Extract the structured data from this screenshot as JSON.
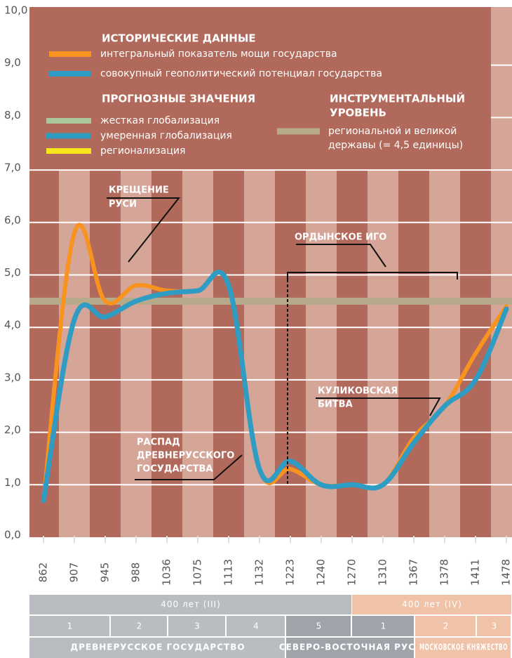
{
  "chart_data": {
    "type": "line",
    "categories": [
      "862",
      "907",
      "945",
      "988",
      "1036",
      "1075",
      "1113",
      "1132",
      "1223",
      "1240",
      "1270",
      "1310",
      "1367",
      "1378",
      "1411",
      "1478"
    ],
    "series": [
      {
        "name": "интегральный показатель мощи государства",
        "color": "#f7931e",
        "values": [
          0.7,
          5.8,
          4.5,
          4.8,
          4.7,
          4.7,
          4.8,
          1.3,
          1.3,
          1.0,
          1.0,
          1.0,
          1.9,
          2.5,
          3.5,
          4.4
        ]
      },
      {
        "name": "совокупный геополитический потенциал государства",
        "color": "#2f9cc3",
        "values": [
          0.7,
          4.15,
          4.2,
          4.5,
          4.65,
          4.7,
          4.8,
          1.3,
          1.45,
          1.0,
          1.0,
          1.0,
          1.8,
          2.5,
          3.0,
          4.35
        ]
      }
    ],
    "ylim": [
      0,
      10
    ],
    "yticks": [
      {
        "value": 0,
        "label": "0,0"
      },
      {
        "value": 1,
        "label": "1,0"
      },
      {
        "value": 2,
        "label": "2,0"
      },
      {
        "value": 3,
        "label": "3,0"
      },
      {
        "value": 4,
        "label": "4,0"
      },
      {
        "value": 5,
        "label": "5,0"
      },
      {
        "value": 6,
        "label": "6,0"
      },
      {
        "value": 7,
        "label": "7,0"
      },
      {
        "value": 8,
        "label": "8,0"
      },
      {
        "value": 9,
        "label": "9,0"
      },
      {
        "value": 10,
        "label": "10,0"
      }
    ],
    "grid": true,
    "legend_title_historic": "ИСТОРИЧЕСКИЕ ДАННЫЕ",
    "legend_title_forecast": "ПРОГНОЗНЫЕ ЗНАЧЕНИЯ",
    "forecasts": [
      {
        "name": "жесткая глобализация",
        "color": "#a9c79a"
      },
      {
        "name": "умеренная глобализация",
        "color": "#2f9cc3"
      },
      {
        "name": "регионализация",
        "color": "#f6e61c"
      }
    ],
    "reference": {
      "value": 4.5,
      "color": "#b7aa8b",
      "title": [
        "ИНСТРУМЕНТАЛЬНЫЙ",
        "УРОВЕНЬ"
      ],
      "label": [
        "региональной и великой",
        "державы (= 4,5 единицы)"
      ]
    },
    "annotations": [
      {
        "lines": [
          "КРЕЩЕНИЕ",
          "РУСИ"
        ]
      },
      {
        "lines": [
          "ОРДЫНСКОЕ ИГО"
        ]
      },
      {
        "lines": [
          "КУЛИКОВСКАЯ",
          "БИТВА"
        ]
      },
      {
        "lines": [
          "РАСПАД",
          "ДРЕВНЕРУССКОГО",
          "ГОСУДАРСТВА"
        ]
      }
    ]
  },
  "timeline": {
    "eras": [
      "400 лет (III)",
      "400 лет (IV)"
    ],
    "periods": [
      "1",
      "2",
      "3",
      "4",
      "5",
      "1",
      "2",
      "3"
    ],
    "states": [
      "ДРЕВНЕРУССКОЕ ГОСУДАРСТВО",
      "СЕВЕРО-ВОСТОЧНАЯ РУСЬ",
      "МОСКОВСКОЕ КНЯЖЕСТВО"
    ]
  }
}
